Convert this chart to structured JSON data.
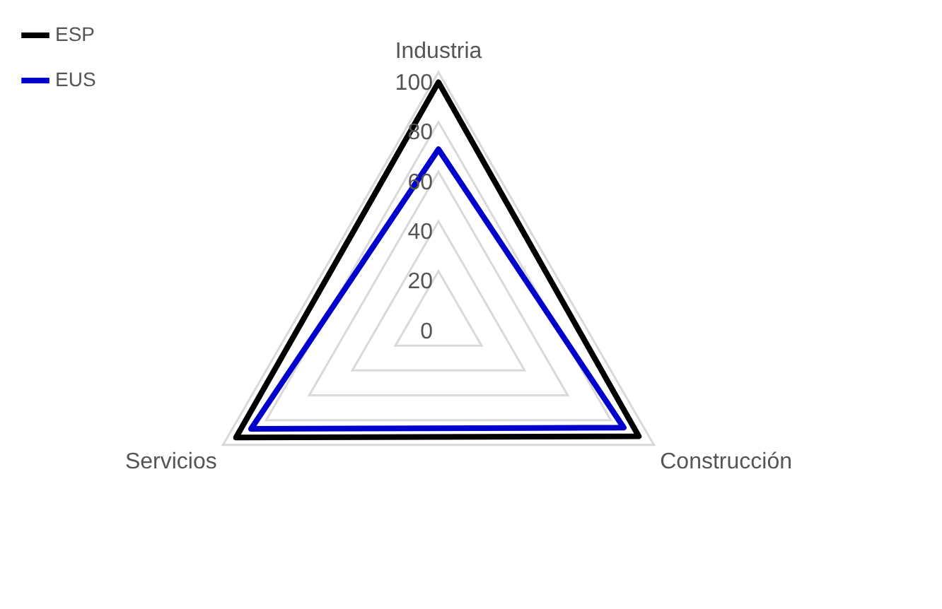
{
  "chart_data": {
    "type": "radar",
    "categories": [
      "Industria",
      "Construcción",
      "Servicios"
    ],
    "series": [
      {
        "name": "ESP",
        "color": "#000000",
        "values": [
          96,
          93,
          94
        ]
      },
      {
        "name": "EUS",
        "color": "#0000cc",
        "values": [
          69,
          86,
          87
        ]
      }
    ],
    "ylim": [
      0,
      100
    ],
    "yticks": [
      0,
      20,
      40,
      60,
      80,
      100
    ],
    "grid": true,
    "legend": "top left",
    "marker": "none"
  }
}
